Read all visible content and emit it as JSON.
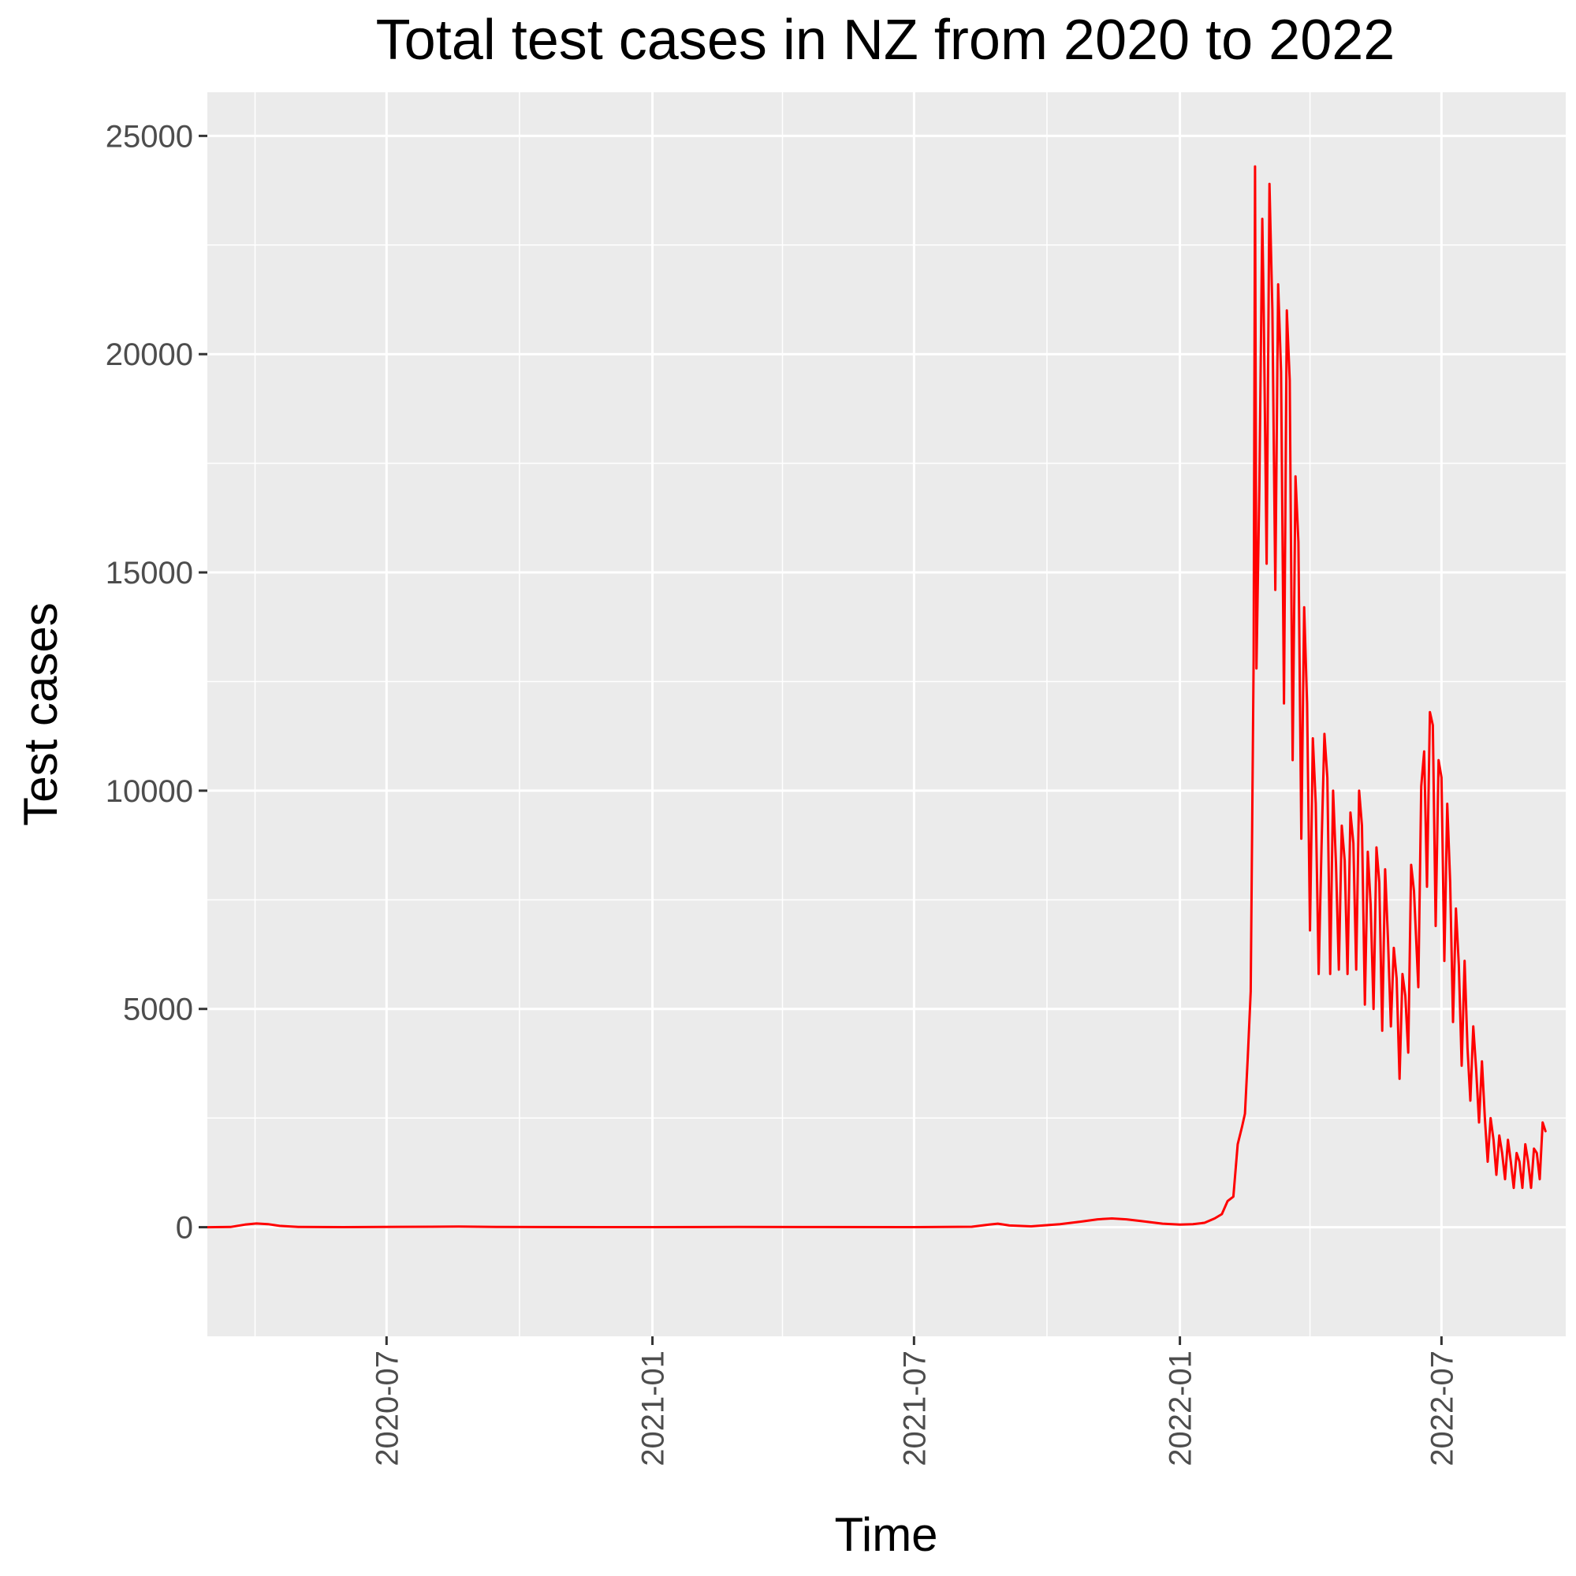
{
  "chart_data": {
    "type": "line",
    "title": "Total test cases in NZ from 2020 to 2022",
    "xlabel": "Time",
    "ylabel": "Test cases",
    "x_axis_type": "date",
    "xlim": [
      "2020-02-28",
      "2022-09-25"
    ],
    "ylim": [
      -2500,
      26000
    ],
    "x_ticks": [
      "2020-07",
      "2021-01",
      "2021-07",
      "2022-01",
      "2022-07"
    ],
    "x_tick_dates": [
      "2020-07-01",
      "2021-01-01",
      "2021-07-01",
      "2022-01-01",
      "2022-07-01"
    ],
    "x_minor_dates": [
      "2020-04-01",
      "2020-10-01",
      "2021-04-01",
      "2021-10-01",
      "2022-04-01"
    ],
    "y_ticks": [
      0,
      5000,
      10000,
      15000,
      20000,
      25000
    ],
    "y_minor": [
      2500,
      7500,
      12500,
      17500,
      22500
    ],
    "grid": true,
    "background": "#ebebeb",
    "grid_color": "#ffffff",
    "series": [
      {
        "color": "#ff0000",
        "points": [
          [
            "2020-02-28",
            0
          ],
          [
            "2020-03-15",
            5
          ],
          [
            "2020-03-25",
            60
          ],
          [
            "2020-04-02",
            85
          ],
          [
            "2020-04-10",
            70
          ],
          [
            "2020-04-18",
            30
          ],
          [
            "2020-05-01",
            5
          ],
          [
            "2020-06-01",
            2
          ],
          [
            "2020-08-01",
            10
          ],
          [
            "2020-08-20",
            15
          ],
          [
            "2020-09-15",
            5
          ],
          [
            "2020-10-15",
            3
          ],
          [
            "2021-01-01",
            2
          ],
          [
            "2021-03-01",
            5
          ],
          [
            "2021-05-01",
            3
          ],
          [
            "2021-07-01",
            2
          ],
          [
            "2021-08-10",
            10
          ],
          [
            "2021-08-22",
            60
          ],
          [
            "2021-08-28",
            80
          ],
          [
            "2021-09-05",
            40
          ],
          [
            "2021-09-20",
            20
          ],
          [
            "2021-10-10",
            70
          ],
          [
            "2021-10-25",
            130
          ],
          [
            "2021-11-05",
            180
          ],
          [
            "2021-11-15",
            200
          ],
          [
            "2021-11-25",
            180
          ],
          [
            "2021-12-05",
            140
          ],
          [
            "2021-12-20",
            80
          ],
          [
            "2022-01-01",
            60
          ],
          [
            "2022-01-10",
            70
          ],
          [
            "2022-01-18",
            100
          ],
          [
            "2022-01-25",
            200
          ],
          [
            "2022-01-30",
            300
          ],
          [
            "2022-02-03",
            600
          ],
          [
            "2022-02-07",
            700
          ],
          [
            "2022-02-10",
            1900
          ],
          [
            "2022-02-13",
            2300
          ],
          [
            "2022-02-15",
            2600
          ],
          [
            "2022-02-17",
            3900
          ],
          [
            "2022-02-19",
            5400
          ],
          [
            "2022-02-21",
            13000
          ],
          [
            "2022-02-22",
            24300
          ],
          [
            "2022-02-23",
            12800
          ],
          [
            "2022-02-25",
            17000
          ],
          [
            "2022-02-27",
            23100
          ],
          [
            "2022-02-28",
            21000
          ],
          [
            "2022-03-02",
            15200
          ],
          [
            "2022-03-04",
            23900
          ],
          [
            "2022-03-06",
            21000
          ],
          [
            "2022-03-08",
            14600
          ],
          [
            "2022-03-10",
            21600
          ],
          [
            "2022-03-12",
            19600
          ],
          [
            "2022-03-14",
            12000
          ],
          [
            "2022-03-16",
            21000
          ],
          [
            "2022-03-18",
            19400
          ],
          [
            "2022-03-20",
            10700
          ],
          [
            "2022-03-22",
            17200
          ],
          [
            "2022-03-24",
            15700
          ],
          [
            "2022-03-26",
            8900
          ],
          [
            "2022-03-28",
            14200
          ],
          [
            "2022-03-30",
            12000
          ],
          [
            "2022-04-01",
            6800
          ],
          [
            "2022-04-03",
            11200
          ],
          [
            "2022-04-05",
            9700
          ],
          [
            "2022-04-07",
            5800
          ],
          [
            "2022-04-09",
            8700
          ],
          [
            "2022-04-11",
            11300
          ],
          [
            "2022-04-13",
            10300
          ],
          [
            "2022-04-15",
            5800
          ],
          [
            "2022-04-17",
            10000
          ],
          [
            "2022-04-19",
            8300
          ],
          [
            "2022-04-21",
            5900
          ],
          [
            "2022-04-23",
            9200
          ],
          [
            "2022-04-25",
            8400
          ],
          [
            "2022-04-27",
            5800
          ],
          [
            "2022-04-29",
            9500
          ],
          [
            "2022-05-01",
            8800
          ],
          [
            "2022-05-03",
            5900
          ],
          [
            "2022-05-05",
            10000
          ],
          [
            "2022-05-07",
            9200
          ],
          [
            "2022-05-09",
            5100
          ],
          [
            "2022-05-11",
            8600
          ],
          [
            "2022-05-13",
            7400
          ],
          [
            "2022-05-15",
            5000
          ],
          [
            "2022-05-17",
            8700
          ],
          [
            "2022-05-19",
            7900
          ],
          [
            "2022-05-21",
            4500
          ],
          [
            "2022-05-23",
            8200
          ],
          [
            "2022-05-25",
            6600
          ],
          [
            "2022-05-27",
            4600
          ],
          [
            "2022-05-29",
            6400
          ],
          [
            "2022-05-31",
            5700
          ],
          [
            "2022-06-02",
            3400
          ],
          [
            "2022-06-04",
            5800
          ],
          [
            "2022-06-06",
            5300
          ],
          [
            "2022-06-08",
            4000
          ],
          [
            "2022-06-10",
            8300
          ],
          [
            "2022-06-12",
            7700
          ],
          [
            "2022-06-15",
            5500
          ],
          [
            "2022-06-17",
            10100
          ],
          [
            "2022-06-19",
            10900
          ],
          [
            "2022-06-21",
            7800
          ],
          [
            "2022-06-23",
            11800
          ],
          [
            "2022-06-25",
            11500
          ],
          [
            "2022-06-27",
            6900
          ],
          [
            "2022-06-29",
            10700
          ],
          [
            "2022-07-01",
            10300
          ],
          [
            "2022-07-03",
            6100
          ],
          [
            "2022-07-05",
            9700
          ],
          [
            "2022-07-07",
            7900
          ],
          [
            "2022-07-09",
            4700
          ],
          [
            "2022-07-11",
            7300
          ],
          [
            "2022-07-13",
            6000
          ],
          [
            "2022-07-15",
            3700
          ],
          [
            "2022-07-17",
            6100
          ],
          [
            "2022-07-19",
            4100
          ],
          [
            "2022-07-21",
            2900
          ],
          [
            "2022-07-23",
            4600
          ],
          [
            "2022-07-25",
            3600
          ],
          [
            "2022-07-27",
            2400
          ],
          [
            "2022-07-29",
            3800
          ],
          [
            "2022-07-31",
            2500
          ],
          [
            "2022-08-02",
            1500
          ],
          [
            "2022-08-04",
            2500
          ],
          [
            "2022-08-06",
            2000
          ],
          [
            "2022-08-08",
            1200
          ],
          [
            "2022-08-10",
            2100
          ],
          [
            "2022-08-12",
            1700
          ],
          [
            "2022-08-14",
            1100
          ],
          [
            "2022-08-16",
            2000
          ],
          [
            "2022-08-18",
            1500
          ],
          [
            "2022-08-20",
            900
          ],
          [
            "2022-08-22",
            1700
          ],
          [
            "2022-08-24",
            1500
          ],
          [
            "2022-08-26",
            900
          ],
          [
            "2022-08-28",
            1900
          ],
          [
            "2022-08-30",
            1500
          ],
          [
            "2022-09-01",
            900
          ],
          [
            "2022-09-03",
            1800
          ],
          [
            "2022-09-05",
            1700
          ],
          [
            "2022-09-07",
            1100
          ],
          [
            "2022-09-09",
            2400
          ],
          [
            "2022-09-11",
            2200
          ]
        ]
      }
    ]
  }
}
